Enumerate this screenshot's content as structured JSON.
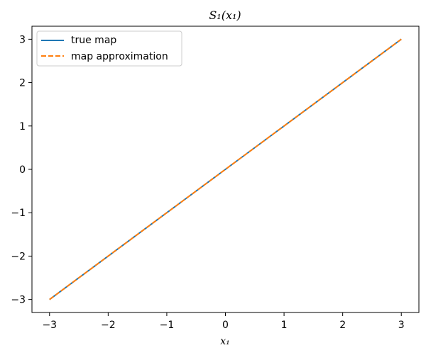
{
  "chart_data": {
    "type": "line",
    "title": "S₁(x₁)",
    "xlabel": "x₁",
    "ylabel": "",
    "xlim": [
      -3.3,
      3.3
    ],
    "ylim": [
      -3.3,
      3.3
    ],
    "xticks": [
      -3,
      -2,
      -1,
      0,
      1,
      2,
      3
    ],
    "yticks": [
      -3,
      -2,
      -1,
      0,
      1,
      2,
      3
    ],
    "tick_labels_x": [
      "−3",
      "−2",
      "−1",
      "0",
      "1",
      "2",
      "3"
    ],
    "tick_labels_y": [
      "−3",
      "−2",
      "−1",
      "0",
      "1",
      "2",
      "3"
    ],
    "grid": false,
    "legend_position": "top-left",
    "series": [
      {
        "name": "true map",
        "color": "#1f77b4",
        "style": "solid",
        "x": [
          -3,
          -2,
          -1,
          0,
          1,
          2,
          3
        ],
        "y": [
          -3,
          -2,
          -1,
          0,
          1,
          2,
          3
        ]
      },
      {
        "name": "map approximation",
        "color": "#ff7f0e",
        "style": "dashed",
        "x": [
          -3,
          -2,
          -1,
          0,
          1,
          2,
          3
        ],
        "y": [
          -3,
          -2,
          -1,
          0,
          1,
          2,
          3
        ]
      }
    ]
  }
}
